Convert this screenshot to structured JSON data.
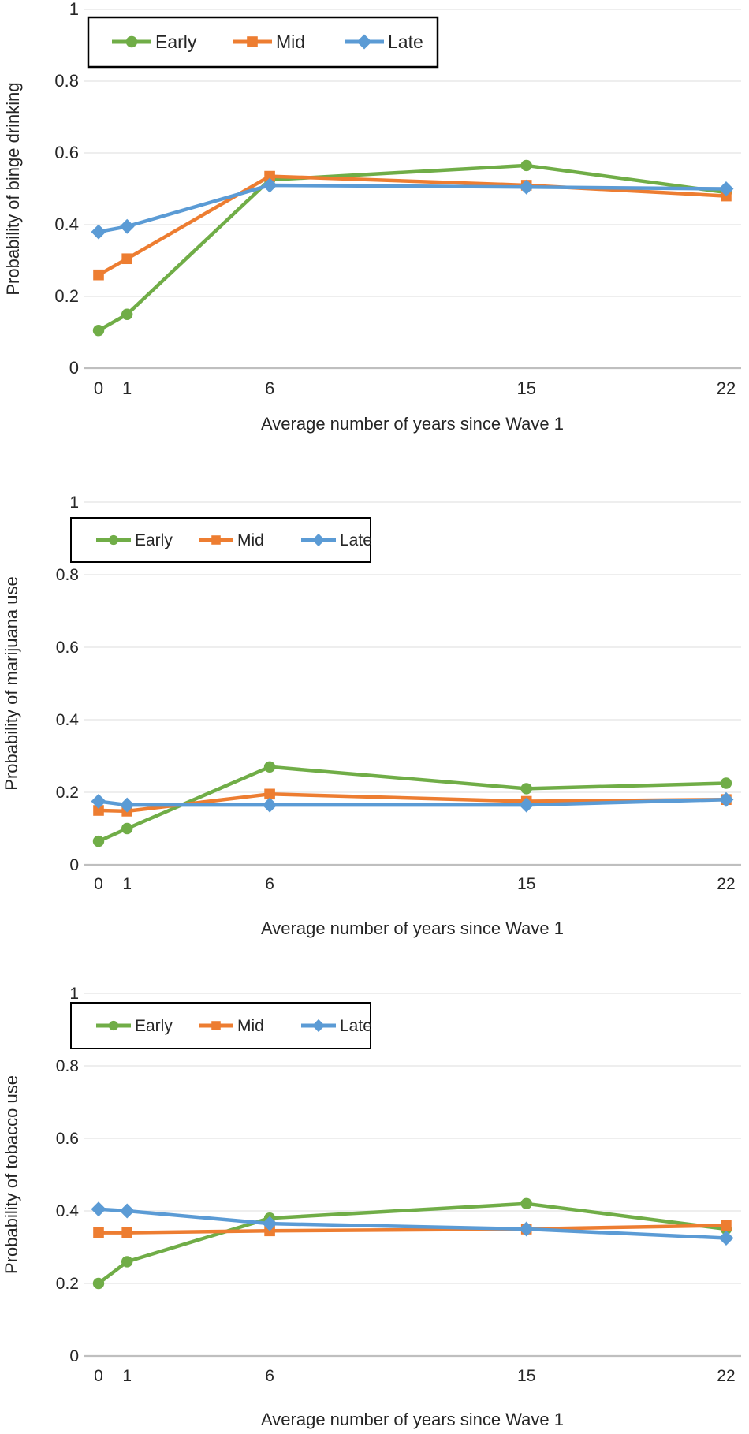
{
  "colors": {
    "early": "#70AD47",
    "mid": "#ED7D31",
    "late": "#5B9BD5",
    "gridline": "#E4E4E4",
    "axis_line": "#BFBFBF",
    "text": "#262626",
    "legend_border": "#000000",
    "background": "#FFFFFF"
  },
  "chart_data": [
    {
      "type": "line",
      "title": "",
      "xlabel": "Average number of years since Wave 1",
      "ylabel": "Probability of binge drinking",
      "x": [
        0,
        1,
        6,
        15,
        22
      ],
      "xtick_labels": [
        "0",
        "1",
        "6",
        "15",
        "22"
      ],
      "ylim": [
        0,
        1
      ],
      "yticks": [
        0,
        0.2,
        0.4,
        0.6,
        0.8,
        1
      ],
      "ytick_labels": [
        "0",
        "0.2",
        "0.4",
        "0.6",
        "0.8",
        "1"
      ],
      "grid": "horizontal",
      "legend_position": "top-left-inside",
      "legend_entries": [
        "Early",
        "Mid",
        "Late"
      ],
      "series": [
        {
          "name": "Early",
          "marker": "circle",
          "color": "#70AD47",
          "values": [
            0.105,
            0.15,
            0.525,
            0.565,
            0.49
          ]
        },
        {
          "name": "Mid",
          "marker": "square",
          "color": "#ED7D31",
          "values": [
            0.26,
            0.305,
            0.535,
            0.51,
            0.48
          ]
        },
        {
          "name": "Late",
          "marker": "diamond",
          "color": "#5B9BD5",
          "values": [
            0.38,
            0.395,
            0.51,
            0.505,
            0.5
          ]
        }
      ]
    },
    {
      "type": "line",
      "title": "",
      "xlabel": "Average number of years since Wave 1",
      "ylabel": "Probability of marijuana use",
      "x": [
        0,
        1,
        6,
        15,
        22
      ],
      "xtick_labels": [
        "0",
        "1",
        "6",
        "15",
        "22"
      ],
      "ylim": [
        0,
        1
      ],
      "yticks": [
        0,
        0.2,
        0.4,
        0.6,
        0.8,
        1
      ],
      "ytick_labels": [
        "0",
        "0.2",
        "0.4",
        "0.6",
        "0.8",
        "1"
      ],
      "grid": "horizontal",
      "legend_position": "top-left-inside",
      "legend_entries": [
        "Early",
        "Mid",
        "Late"
      ],
      "series": [
        {
          "name": "Early",
          "marker": "circle",
          "color": "#70AD47",
          "values": [
            0.065,
            0.1,
            0.27,
            0.21,
            0.225
          ]
        },
        {
          "name": "Mid",
          "marker": "square",
          "color": "#ED7D31",
          "values": [
            0.15,
            0.148,
            0.195,
            0.175,
            0.18
          ]
        },
        {
          "name": "Late",
          "marker": "diamond",
          "color": "#5B9BD5",
          "values": [
            0.175,
            0.165,
            0.165,
            0.165,
            0.18
          ]
        }
      ]
    },
    {
      "type": "line",
      "title": "",
      "xlabel": "Average number of years since Wave 1",
      "ylabel": "Probability of tobacco use",
      "x": [
        0,
        1,
        6,
        15,
        22
      ],
      "xtick_labels": [
        "0",
        "1",
        "6",
        "15",
        "22"
      ],
      "ylim": [
        0,
        1
      ],
      "yticks": [
        0,
        0.2,
        0.4,
        0.6,
        0.8,
        1
      ],
      "ytick_labels": [
        "0",
        "0.2",
        "0.4",
        "0.6",
        "0.8",
        "1"
      ],
      "grid": "horizontal",
      "legend_position": "top-left-inside",
      "legend_entries": [
        "Early",
        "Mid",
        "Late"
      ],
      "series": [
        {
          "name": "Early",
          "marker": "circle",
          "color": "#70AD47",
          "values": [
            0.2,
            0.26,
            0.38,
            0.42,
            0.35
          ]
        },
        {
          "name": "Mid",
          "marker": "square",
          "color": "#ED7D31",
          "values": [
            0.34,
            0.34,
            0.345,
            0.35,
            0.36
          ]
        },
        {
          "name": "Late",
          "marker": "diamond",
          "color": "#5B9BD5",
          "values": [
            0.405,
            0.4,
            0.365,
            0.35,
            0.325
          ]
        }
      ]
    }
  ]
}
